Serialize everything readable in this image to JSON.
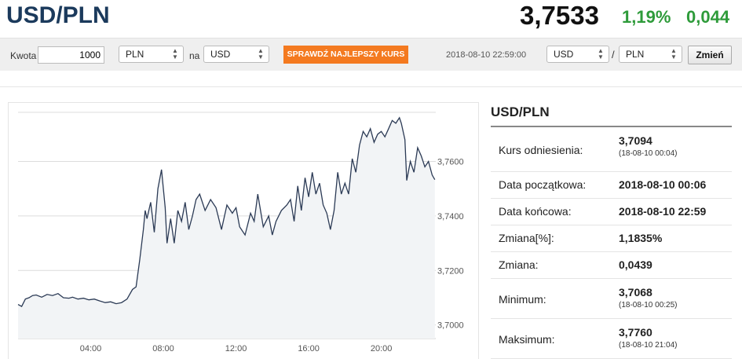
{
  "header": {
    "pair": "USD/PLN",
    "rate": "3,7533",
    "change_pct": "1,19%",
    "change_abs": "0,044"
  },
  "toolbar": {
    "amount_label": "Kwota",
    "amount_value": "1000",
    "from_currency": "PLN",
    "to_label": "na",
    "to_currency": "USD",
    "best_rate_button": "SPRAWDŹ NAJLEPSZY KURS",
    "timestamp": "2018-08-10 22:59:00",
    "pair_base": "USD",
    "pair_separator": "/",
    "pair_quote": "PLN",
    "change_button": "Zmień"
  },
  "info": {
    "title": "USD/PLN",
    "rows": [
      {
        "label": "Kurs odniesienia:",
        "value": "3,7094",
        "sub": "(18-08-10 00:04)"
      },
      {
        "label": "Data początkowa:",
        "value": "2018-08-10 00:06",
        "sub": ""
      },
      {
        "label": "Data końcowa:",
        "value": "2018-08-10 22:59",
        "sub": ""
      },
      {
        "label": "Zmiana[%]:",
        "value": "1,1835%",
        "sub": ""
      },
      {
        "label": "Zmiana:",
        "value": "0,0439",
        "sub": ""
      },
      {
        "label": "Minimum:",
        "value": "3,7068",
        "sub": "(18-08-10 00:25)"
      },
      {
        "label": "Maksimum:",
        "value": "3,7760",
        "sub": "(18-08-10 21:04)"
      }
    ]
  },
  "chart_data": {
    "type": "area",
    "x_unit": "hours",
    "xlim": [
      0,
      23
    ],
    "ylim": [
      3.695,
      3.778
    ],
    "x_ticks": [
      4,
      8,
      12,
      16,
      20
    ],
    "x_tick_labels": [
      "04:00",
      "08:00",
      "12:00",
      "16:00",
      "20:00"
    ],
    "y_ticks": [
      3.7,
      3.72,
      3.74,
      3.76
    ],
    "y_tick_labels": [
      "3,7000",
      "3,7200",
      "3,7400",
      "3,7600"
    ],
    "grid": true,
    "line_color": "#2b3a55",
    "fill_color": "#f2f4f6",
    "series": [
      {
        "x": [
          0.0,
          0.2,
          0.4,
          0.6,
          0.8,
          1.0,
          1.3,
          1.6,
          1.9,
          2.2,
          2.5,
          2.8,
          3.0,
          3.3,
          3.6,
          3.9,
          4.2,
          4.5,
          4.8,
          5.1,
          5.4,
          5.7,
          6.0,
          6.3,
          6.5,
          6.7,
          6.9,
          7.0,
          7.1,
          7.3,
          7.5,
          7.7,
          7.9,
          8.1,
          8.2,
          8.4,
          8.6,
          8.8,
          9.0,
          9.2,
          9.4,
          9.6,
          9.8,
          10.0,
          10.3,
          10.6,
          10.9,
          11.2,
          11.5,
          11.8,
          12.0,
          12.2,
          12.5,
          12.8,
          13.0,
          13.2,
          13.5,
          13.8,
          14.0,
          14.2,
          14.5,
          14.8,
          15.0,
          15.2,
          15.4,
          15.6,
          15.8,
          16.0,
          16.2,
          16.4,
          16.6,
          16.8,
          17.0,
          17.2,
          17.4,
          17.6,
          17.8,
          18.0,
          18.2,
          18.4,
          18.6,
          18.8,
          19.0,
          19.2,
          19.4,
          19.6,
          19.8,
          20.0,
          20.2,
          20.4,
          20.6,
          20.8,
          21.0,
          21.1,
          21.3,
          21.4,
          21.6,
          21.8,
          22.0,
          22.2,
          22.4,
          22.6,
          22.8,
          22.95
        ],
        "y": [
          3.7075,
          3.7068,
          3.7095,
          3.71,
          3.7108,
          3.711,
          3.7102,
          3.7112,
          3.7108,
          3.7115,
          3.71,
          3.7098,
          3.7102,
          3.7095,
          3.7098,
          3.7092,
          3.7095,
          3.7088,
          3.7082,
          3.7085,
          3.7078,
          3.7082,
          3.7095,
          3.713,
          3.714,
          3.724,
          3.735,
          3.742,
          3.739,
          3.745,
          3.734,
          3.75,
          3.757,
          3.743,
          3.73,
          3.739,
          3.73,
          3.742,
          3.738,
          3.745,
          3.735,
          3.74,
          3.746,
          3.748,
          3.742,
          3.746,
          3.743,
          3.735,
          3.744,
          3.741,
          3.743,
          3.736,
          3.733,
          3.741,
          3.738,
          3.748,
          3.736,
          3.74,
          3.733,
          3.738,
          3.742,
          3.744,
          3.746,
          3.738,
          3.751,
          3.742,
          3.754,
          3.747,
          3.756,
          3.748,
          3.752,
          3.744,
          3.741,
          3.735,
          3.742,
          3.756,
          3.748,
          3.752,
          3.748,
          3.761,
          3.756,
          3.766,
          3.771,
          3.769,
          3.772,
          3.767,
          3.77,
          3.771,
          3.769,
          3.772,
          3.775,
          3.774,
          3.776,
          3.774,
          3.768,
          3.753,
          3.76,
          3.756,
          3.765,
          3.762,
          3.758,
          3.76,
          3.755,
          3.7533
        ]
      }
    ]
  }
}
